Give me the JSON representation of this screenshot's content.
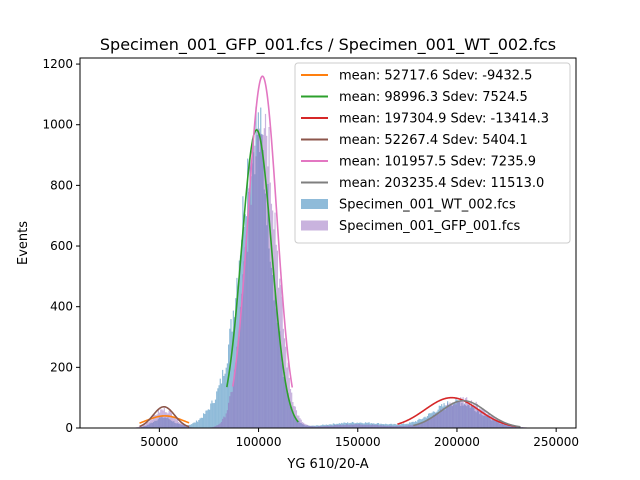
{
  "chart_data": {
    "type": "bar",
    "title": "Specimen_001_GFP_001.fcs / Specimen_001_WT_002.fcs",
    "xlabel": "YG 610/20-A",
    "ylabel": "Events",
    "xlim": [
      10000,
      260000
    ],
    "ylim": [
      0,
      1220
    ],
    "xticks": [
      50000,
      100000,
      150000,
      200000,
      250000
    ],
    "yticks": [
      0,
      200,
      400,
      600,
      800,
      1000,
      1200
    ],
    "grid": false,
    "legend_position": "upper right",
    "histograms": [
      {
        "name": "Specimen_001_WT_002.fcs",
        "color": "#1f77b4",
        "alpha": 0.5,
        "components": [
          {
            "amp": 35,
            "mean": 52000,
            "sd": 5000
          },
          {
            "amp": 950,
            "mean": 99000,
            "sd": 7500
          },
          {
            "amp": 110,
            "mean": 85000,
            "sd": 9000
          },
          {
            "amp": 18,
            "mean": 150000,
            "sd": 16000
          },
          {
            "amp": 85,
            "mean": 200000,
            "sd": 12000
          }
        ]
      },
      {
        "name": "Specimen_001_GFP_001.fcs",
        "color": "#9467bd",
        "alpha": 0.5,
        "components": [
          {
            "amp": 60,
            "mean": 52300,
            "sd": 5400
          },
          {
            "amp": 1080,
            "mean": 101500,
            "sd": 7200
          },
          {
            "amp": 12,
            "mean": 150000,
            "sd": 15000
          },
          {
            "amp": 90,
            "mean": 203000,
            "sd": 11500
          }
        ]
      }
    ],
    "series": [
      {
        "name": "mean: 52717.6 Sdev: -9432.5",
        "color": "#ff7f0e",
        "mean": 52717.6,
        "sdev": -9432.5,
        "peak": 40,
        "x_range": [
          40000,
          65000
        ]
      },
      {
        "name": "mean: 98996.3 Sdev: 7524.5",
        "color": "#2ca02c",
        "mean": 98996.3,
        "sdev": 7524.5,
        "peak": 983,
        "x_range": [
          84000,
          120000
        ]
      },
      {
        "name": "mean: 197304.9 Sdev: -13414.3",
        "color": "#d62728",
        "mean": 197304.9,
        "sdev": -13414.3,
        "peak": 100,
        "x_range": [
          170000,
          230000
        ]
      },
      {
        "name": "mean: 52267.4 Sdev: 5404.1",
        "color": "#8c564b",
        "mean": 52267.4,
        "sdev": 5404.1,
        "peak": 70,
        "x_range": [
          40000,
          65000
        ]
      },
      {
        "name": "mean: 101957.5 Sdev: 7235.9",
        "color": "#e377c2",
        "mean": 101957.5,
        "sdev": 7235.9,
        "peak": 1160,
        "x_range": [
          87000,
          117000
        ]
      },
      {
        "name": "mean: 203235.4 Sdev: 11513.0",
        "color": "#7f7f7f",
        "mean": 203235.4,
        "sdev": 11513.0,
        "peak": 90,
        "x_range": [
          178000,
          232000
        ]
      }
    ]
  }
}
